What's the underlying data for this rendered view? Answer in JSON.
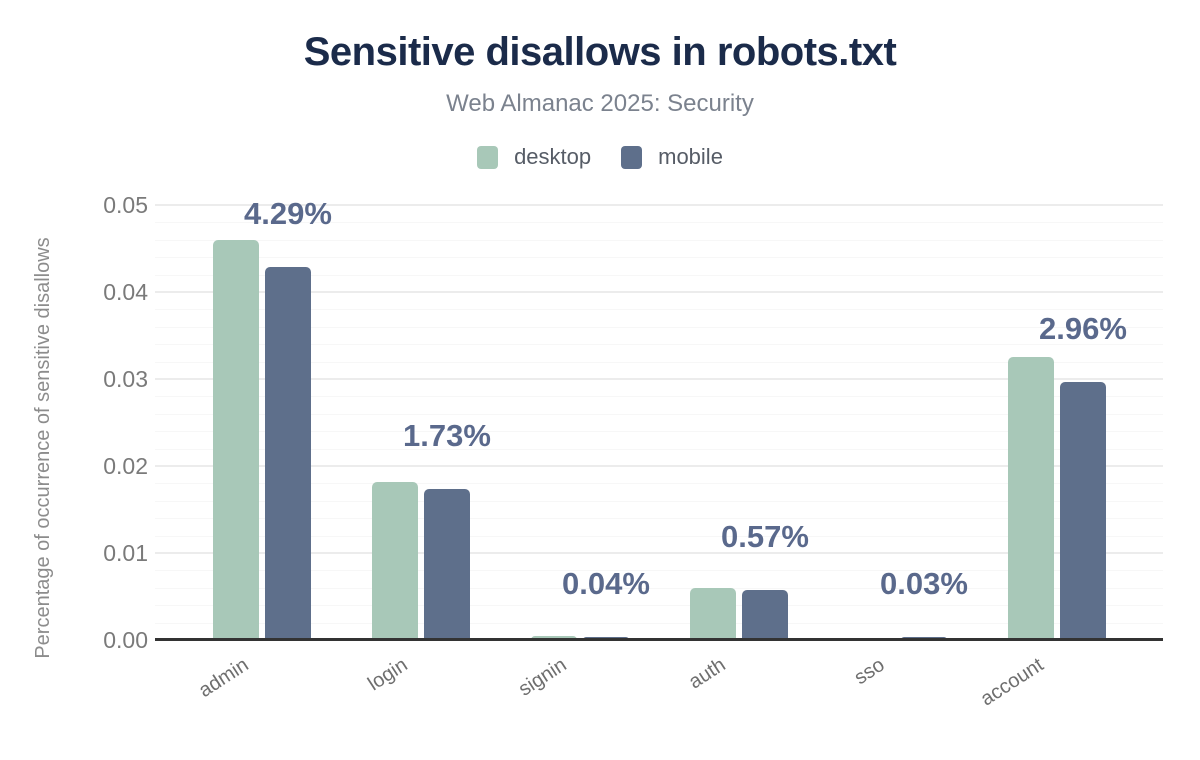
{
  "header": {
    "title": "Sensitive disallows in robots.txt",
    "subtitle": "Web Almanac 2025: Security"
  },
  "legend": {
    "items": [
      {
        "label": "desktop",
        "color": "#a8c8b8"
      },
      {
        "label": "mobile",
        "color": "#5e6f8b"
      }
    ]
  },
  "chart_data": {
    "type": "bar",
    "title": "Sensitive disallows in robots.txt",
    "subtitle": "Web Almanac 2025: Security",
    "xlabel": "",
    "ylabel": "Percentage of occurrence of sensitive disallows",
    "categories": [
      "admin",
      "login",
      "signin",
      "auth",
      "sso",
      "account"
    ],
    "series": [
      {
        "name": "desktop",
        "color": "#a8c8b8",
        "values": [
          0.046,
          0.0182,
          0.0005,
          0.006,
          0.00025,
          0.0325
        ]
      },
      {
        "name": "mobile",
        "color": "#5e6f8b",
        "values": [
          0.0429,
          0.0173,
          0.0004,
          0.0057,
          0.0003,
          0.0296
        ]
      }
    ],
    "annotations": {
      "series": "mobile",
      "labels": [
        "4.29%",
        "1.73%",
        "0.04%",
        "0.57%",
        "0.03%",
        "2.96%"
      ]
    },
    "y_ticks": [
      "0.00",
      "0.01",
      "0.02",
      "0.03",
      "0.04",
      "0.05"
    ],
    "ylim": [
      0,
      0.05
    ],
    "grid": {
      "horizontal": true,
      "minor_step": 0.002,
      "major_step": 0.01
    },
    "legend_position": "top-center"
  }
}
